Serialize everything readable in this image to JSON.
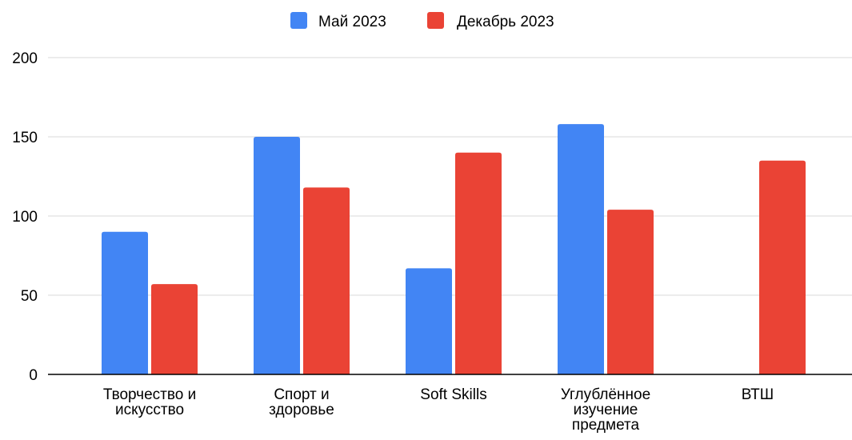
{
  "chart_data": {
    "type": "bar",
    "title": "",
    "xlabel": "",
    "ylabel": "",
    "ylim": [
      0,
      200
    ],
    "yticks": [
      0,
      50,
      100,
      150,
      200
    ],
    "grid": true,
    "legend_position": "top-center",
    "categories": [
      [
        "Творчество и",
        "искусство"
      ],
      [
        "Спорт и",
        "здоровье"
      ],
      [
        "Soft Skills"
      ],
      [
        "Углублённое",
        "изучение",
        "предмета"
      ],
      [
        "ВТШ"
      ]
    ],
    "series": [
      {
        "name": "Май 2023",
        "color": "#4285f4",
        "values": [
          90,
          150,
          67,
          158,
          null
        ]
      },
      {
        "name": "Декабрь 2023",
        "color": "#ea4335",
        "values": [
          57,
          118,
          140,
          104,
          135
        ]
      }
    ],
    "colors": {
      "grid": "#d9d9d9",
      "axis": "#000000",
      "text": "#000000"
    }
  }
}
